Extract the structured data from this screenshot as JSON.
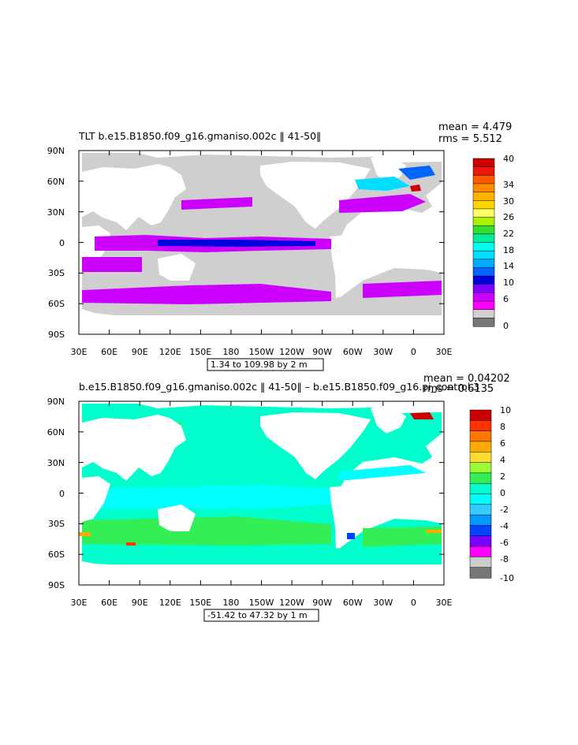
{
  "panels": [
    {
      "title": "TLT b.e15.B1850.f09_g16.gmaniso.002c ‖ 41-50‖",
      "mean": "mean = 4.479",
      "rms": "rms = 5.512",
      "range": "1.34 to 109.98 by 2 m",
      "lat_labels": [
        "90N",
        "60N",
        "30N",
        "0",
        "30S",
        "60S",
        "90S"
      ],
      "lon_labels": [
        "30E",
        "60E",
        "90E",
        "120E",
        "150E",
        "180",
        "150W",
        "120W",
        "90W",
        "60W",
        "30W",
        "0",
        "30E"
      ],
      "colorbar": {
        "labels": [
          "40",
          "34",
          "30",
          "26",
          "22",
          "18",
          "14",
          "10",
          "6",
          "0"
        ],
        "colors": [
          "#cc0000",
          "#e8190c",
          "#ff5a00",
          "#ff8c00",
          "#ffb300",
          "#ffd700",
          "#ffff66",
          "#aaf000",
          "#33dd33",
          "#00ee99",
          "#00ffee",
          "#00ddff",
          "#00aaff",
          "#0066ff",
          "#0000dd",
          "#8000ff",
          "#cc00ff",
          "#ff00ff",
          "#d0d0d0",
          "#777777"
        ]
      }
    },
    {
      "title": "b.e15.B1850.f09_g16.gmaniso.002c ‖ 41-50‖ – b.e15.B1850.f09_g16.pi_control.3",
      "mean": "mean = 0.04202",
      "rms": "rms = 0.6135",
      "range": "-51.42 to 47.32 by 1 m",
      "lat_labels": [
        "90N",
        "60N",
        "30N",
        "0",
        "30S",
        "60S",
        "90S"
      ],
      "lon_labels": [
        "30E",
        "60E",
        "90E",
        "120E",
        "150E",
        "180",
        "150W",
        "120W",
        "90W",
        "60W",
        "30W",
        "0",
        "30E"
      ],
      "colorbar": {
        "labels": [
          "10",
          "8",
          "6",
          "4",
          "2",
          "0",
          "-2",
          "-4",
          "-6",
          "-8",
          "-10"
        ],
        "colors": [
          "#cc0000",
          "#ff3300",
          "#ff7700",
          "#ffaa00",
          "#ffdd33",
          "#99ff33",
          "#33ee55",
          "#00ffcc",
          "#00ffff",
          "#33ccff",
          "#0099ff",
          "#0044ff",
          "#7700ff",
          "#ff00ff",
          "#cccccc",
          "#777777"
        ]
      }
    }
  ]
}
